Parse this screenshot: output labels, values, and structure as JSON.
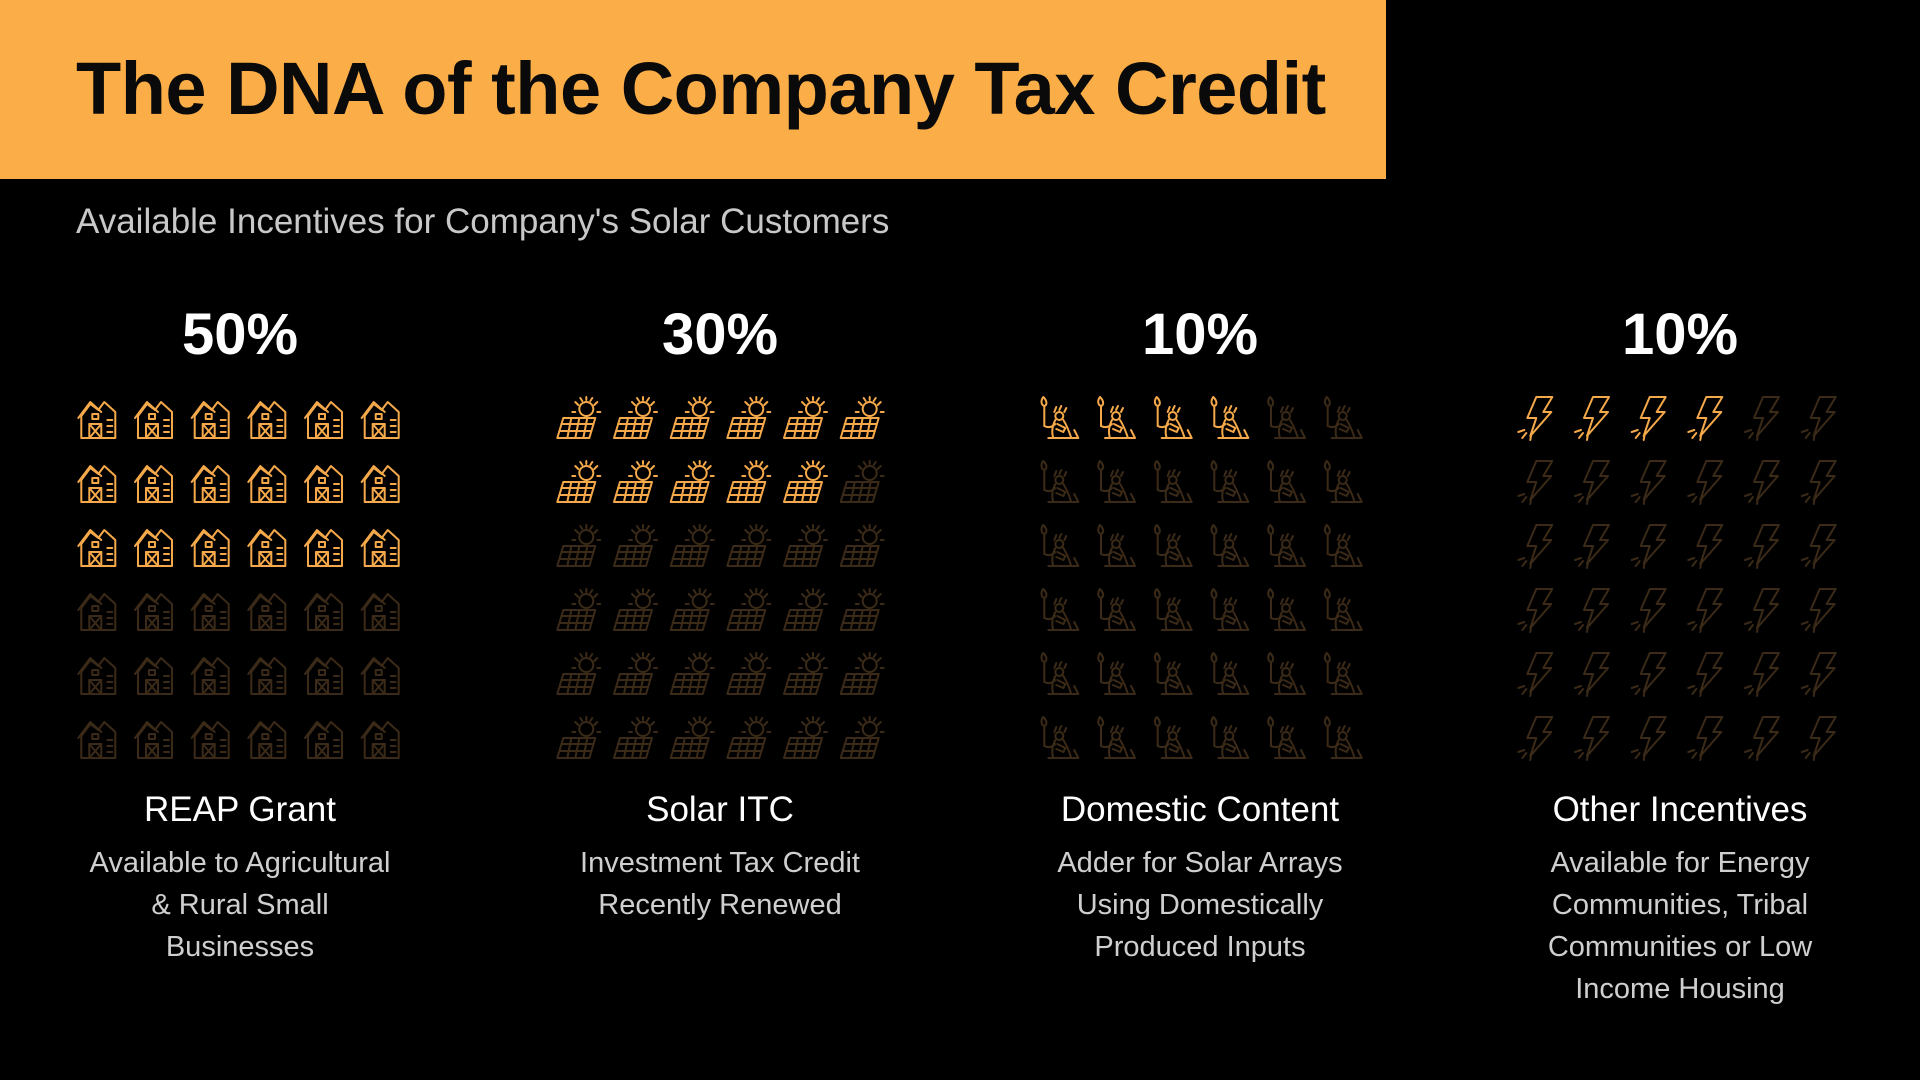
{
  "title": "The DNA of the Company Tax Credit",
  "subtitle": "Available Incentives for Company's Solar Customers",
  "colors": {
    "accent": "#FBAE48",
    "background": "#000000",
    "icon_active": "#F5A94A",
    "icon_inactive": "#3b2a17"
  },
  "chart_data": {
    "type": "pictograph",
    "grid": {
      "rows": 6,
      "cols": 6,
      "icons_per_category": 36
    },
    "categories": [
      {
        "value_label": "50%",
        "value": 50,
        "label": "REAP Grant",
        "description": "Available to Agricultural & Rural Small Businesses",
        "icon": "barn-icon",
        "filled_icons": 18
      },
      {
        "value_label": "30%",
        "value": 30,
        "label": "Solar ITC",
        "description": "Investment Tax Credit Recently Renewed",
        "icon": "solar-panel-icon",
        "filled_icons": 11
      },
      {
        "value_label": "10%",
        "value": 10,
        "label": "Domestic Content",
        "description": "Adder for Solar Arrays Using Domestically Produced Inputs",
        "icon": "statue-of-liberty-icon",
        "filled_icons": 4
      },
      {
        "value_label": "10%",
        "value": 10,
        "label": "Other Incentives",
        "description": "Available for Energy Communities, Tribal Communities or Low Income Housing",
        "icon": "lightning-icon",
        "filled_icons": 4
      }
    ]
  }
}
